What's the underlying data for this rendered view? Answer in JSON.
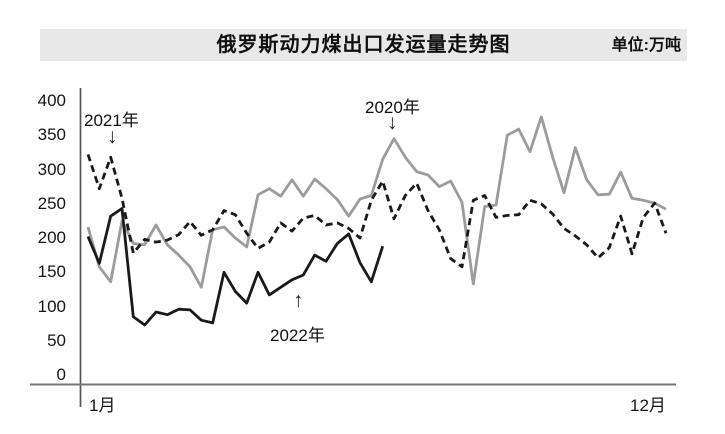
{
  "header": {
    "title": "俄罗斯动力煤出口发运量走势图",
    "unit_label": "单位:万吨"
  },
  "icons": {
    "down_arrow": "↓",
    "up_arrow": "↑"
  },
  "chart_data": {
    "type": "line",
    "title": "俄罗斯动力煤出口发运量走势图",
    "unit": "万吨",
    "x_axis": {
      "start_label": "1月",
      "end_label": "12月",
      "months": 12,
      "points_per_year": 52
    },
    "y_axis": {
      "ticks": [
        400,
        350,
        300,
        250,
        200,
        150,
        100,
        50,
        0
      ],
      "range": [
        0,
        400
      ],
      "grid": false
    },
    "legend_position": "inline-annotations",
    "series": [
      {
        "name": "2020年",
        "style": "solid",
        "color": "#9c9c9c",
        "values": [
          216,
          158,
          136,
          225,
          192,
          190,
          219,
          190,
          175,
          158,
          128,
          212,
          216,
          200,
          187,
          263,
          272,
          261,
          285,
          261,
          286,
          272,
          256,
          232,
          257,
          262,
          315,
          345,
          318,
          297,
          292,
          275,
          283,
          252,
          133,
          246,
          248,
          350,
          359,
          326,
          377,
          318,
          266,
          332,
          285,
          263,
          264,
          296,
          258,
          255,
          251,
          242
        ]
      },
      {
        "name": "2021年",
        "style": "dashed",
        "color": "#1a1a1a",
        "values": [
          322,
          272,
          318,
          258,
          178,
          198,
          194,
          197,
          205,
          224,
          204,
          212,
          240,
          234,
          207,
          185,
          194,
          222,
          210,
          229,
          233,
          219,
          222,
          214,
          200,
          255,
          283,
          228,
          262,
          280,
          240,
          212,
          170,
          158,
          255,
          262,
          230,
          233,
          234,
          255,
          250,
          235,
          214,
          203,
          190,
          171,
          186,
          232,
          177,
          230,
          251,
          207
        ]
      },
      {
        "name": "2022年",
        "style": "solid",
        "color": "#1a1a1a",
        "values": [
          202,
          163,
          232,
          243,
          85,
          73,
          92,
          88,
          96,
          95,
          80,
          76,
          150,
          122,
          105,
          150,
          117,
          128,
          139,
          146,
          175,
          166,
          192,
          206,
          164,
          136,
          188
        ]
      }
    ],
    "annotations": [
      {
        "label": "2020年",
        "arrow": "down",
        "anchor_week": 28,
        "anchor_value": 345
      },
      {
        "label": "2021年",
        "arrow": "down",
        "anchor_week": 3,
        "anchor_value": 318
      },
      {
        "label": "2022年",
        "arrow": "up",
        "anchor_week": 20,
        "anchor_value": 146
      }
    ]
  }
}
